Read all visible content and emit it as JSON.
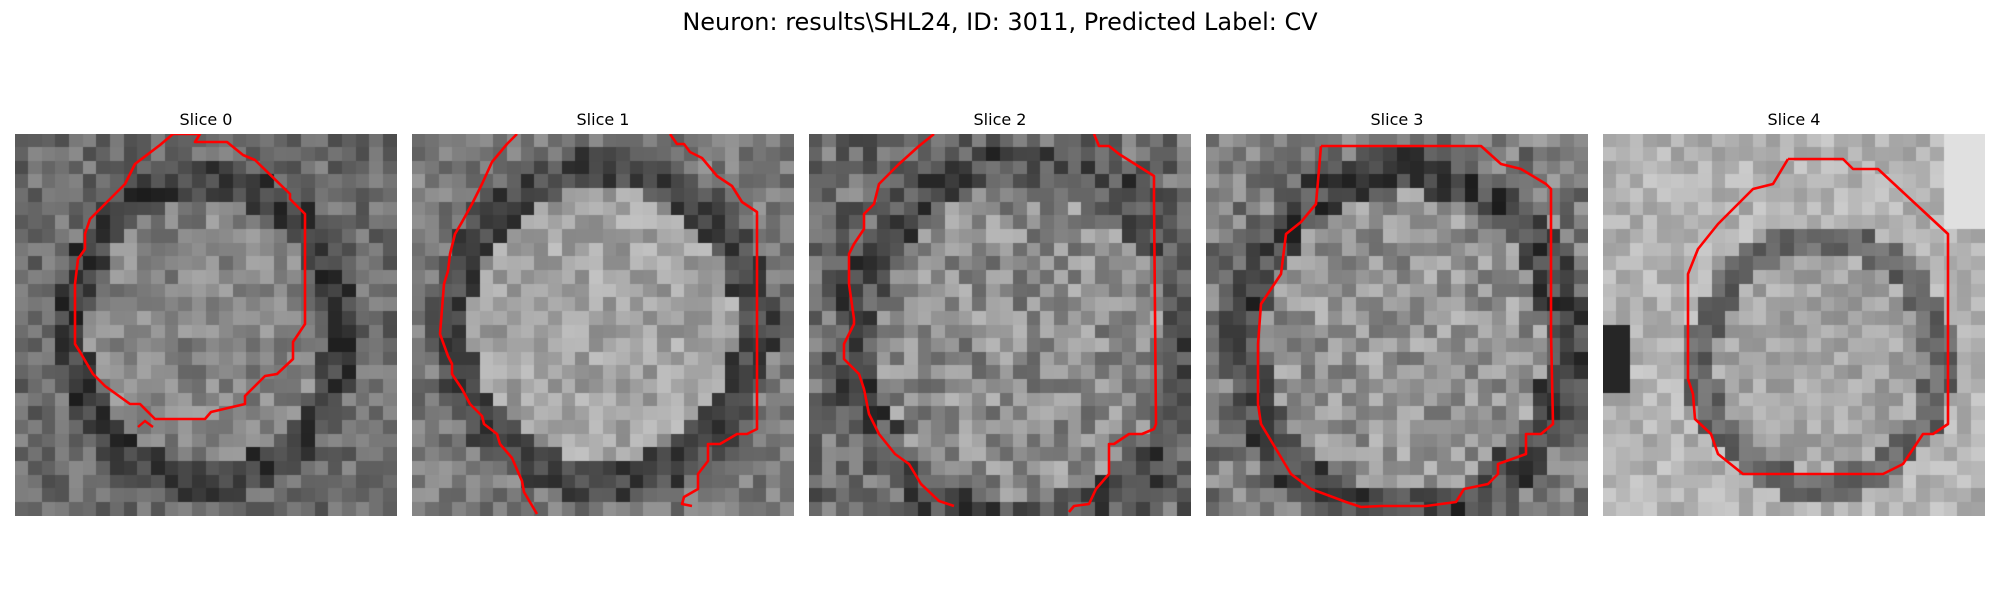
{
  "figure": {
    "title": "Neuron: results\\SHL24, ID: 3011, Predicted Label: CV"
  },
  "panels": [
    {
      "title": "Slice 0"
    },
    {
      "title": "Slice 1"
    },
    {
      "title": "Slice 2"
    },
    {
      "title": "Slice 3"
    },
    {
      "title": "Slice 4"
    }
  ],
  "colors": {
    "contour": "#ff0000",
    "background": "#ffffff"
  }
}
